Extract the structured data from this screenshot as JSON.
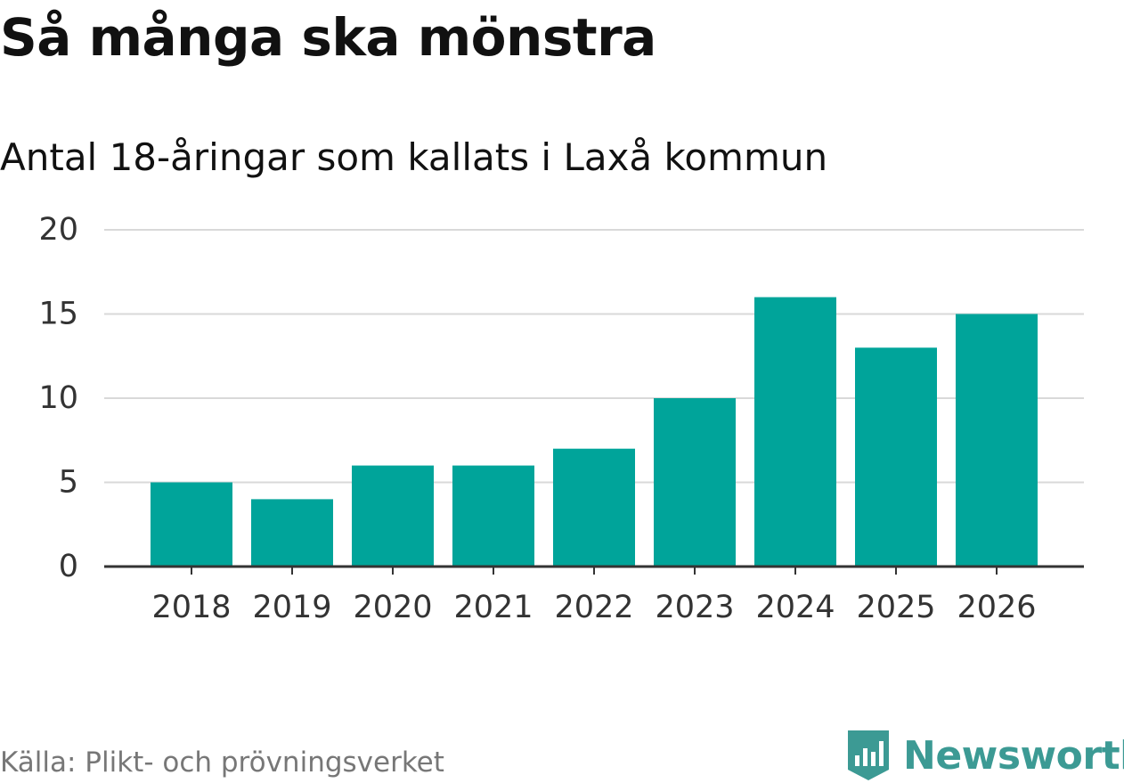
{
  "title": "Så många ska mönstra",
  "subtitle": "Antal 18-åringar som kallats i Laxå kommun",
  "source": "Källa: Plikt- och prövningsverket",
  "brand": {
    "name": "Newsworthy",
    "icon": "newsworthy-logo-icon",
    "color": "#3c9a94"
  },
  "colors": {
    "bar": "#00a49a",
    "grid": "#d9d9d9",
    "axis": "#333333"
  },
  "chart_data": {
    "type": "bar",
    "title": "Så många ska mönstra",
    "subtitle": "Antal 18-åringar som kallats i Laxå kommun",
    "xlabel": "",
    "ylabel": "",
    "categories": [
      "2018",
      "2019",
      "2020",
      "2021",
      "2022",
      "2023",
      "2024",
      "2025",
      "2026"
    ],
    "values": [
      5,
      4,
      6,
      6,
      7,
      10,
      16,
      13,
      15
    ],
    "ylim": [
      0,
      20
    ],
    "yticks": [
      0,
      5,
      10,
      15,
      20
    ],
    "grid": true,
    "legend": "none"
  }
}
